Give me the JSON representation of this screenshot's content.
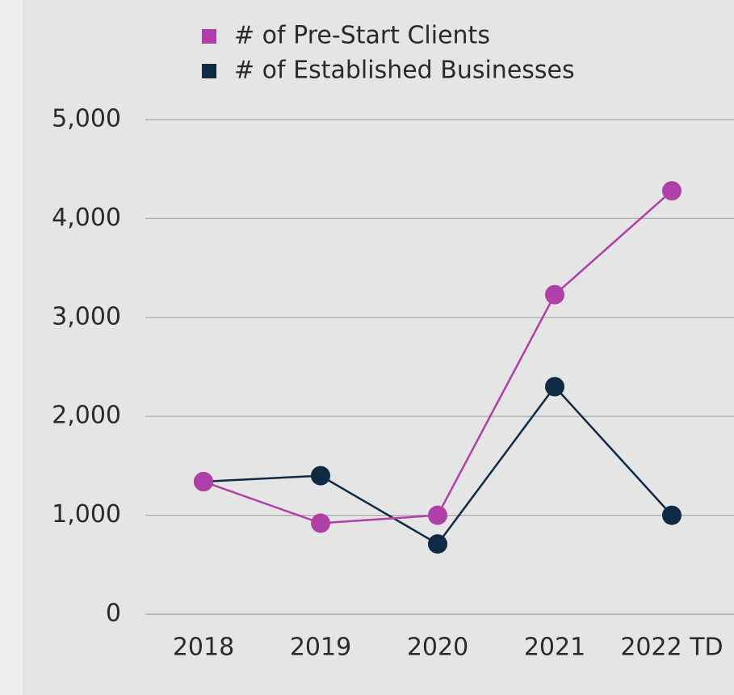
{
  "chart_data": {
    "type": "line",
    "categories": [
      "2018",
      "2019",
      "2020",
      "2021",
      "2022 TD"
    ],
    "series": [
      {
        "name": "# of Pre-Start Clients",
        "color": "#b040a8",
        "values": [
          1340,
          920,
          1000,
          3230,
          4280
        ]
      },
      {
        "name": "# of Established Businesses",
        "color": "#0f2a44",
        "values": [
          1340,
          1400,
          710,
          2300,
          1000
        ]
      }
    ],
    "ylim": [
      0,
      5000
    ],
    "yticks": [
      0,
      {
        "value": 1000,
        "label": "1,000"
      },
      {
        "value": 2000,
        "label": "2,000"
      },
      {
        "value": 3000,
        "label": "3,000"
      },
      {
        "value": 4000,
        "label": "4,000"
      },
      {
        "value": 5000,
        "label": "5,000"
      }
    ],
    "grid": true
  }
}
